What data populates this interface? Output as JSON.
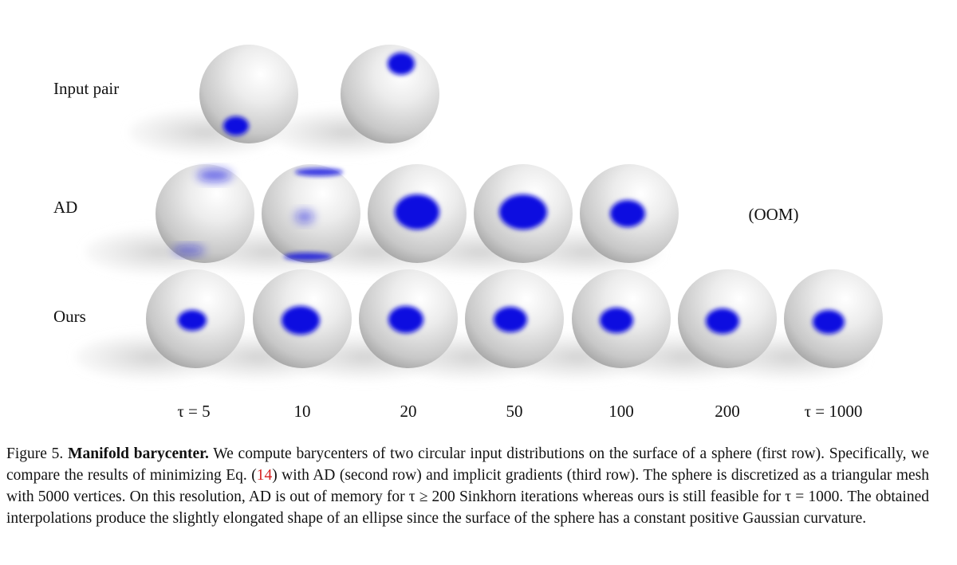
{
  "figure": {
    "row_labels": [
      "Input pair",
      "AD",
      "Ours"
    ],
    "oom_label": "(OOM)",
    "column_labels": [
      "τ = 5",
      "10",
      "20",
      "50",
      "100",
      "200",
      "τ = 1000"
    ],
    "caption": {
      "prefix": "Figure 5.",
      "title": "Manifold barycenter.",
      "text_before_ref": "We compute barycenters of two circular input distributions on the surface of a sphere (first row). Specifically, we compare the results of minimizing Eq. (",
      "ref": "14",
      "text_after_ref": ") with AD (second row) and implicit gradients (third row). The sphere is discretized as a triangular mesh with 5000 vertices. On this resolution, AD is out of memory for τ ≥ 200 Sinkhorn iterations whereas ours is still feasible for τ = 1000. The obtained interpolations produce the slightly elongated shape of an ellipse since the surface of the sphere has a constant positive Gaussian curvature."
    }
  }
}
